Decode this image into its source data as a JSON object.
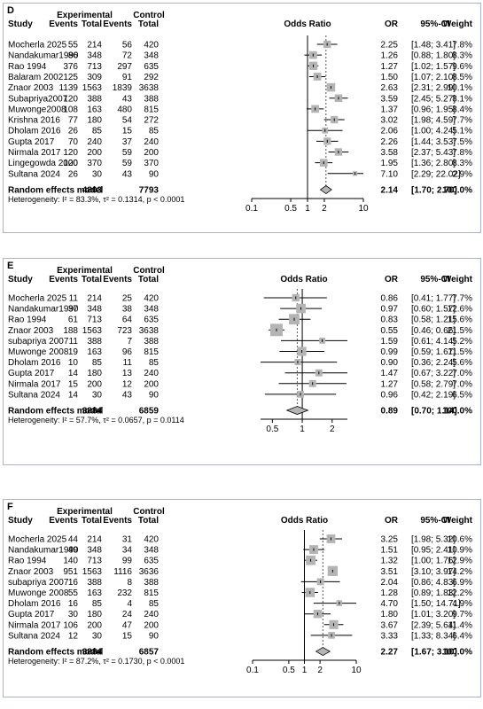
{
  "headers": {
    "study": "Study",
    "experimental": "Experimental",
    "control": "Control",
    "events": "Events",
    "total": "Total",
    "odds_ratio": "Odds Ratio",
    "or": "OR",
    "ci": "95%-CI",
    "weight": "Weight"
  },
  "colors": {
    "box": "#b4b4b4",
    "border": "#aab4c6",
    "line": "#000000"
  },
  "chart_data": [
    {
      "type": "forest",
      "panel_label": "D",
      "log_scale": true,
      "ticks": [
        "0.1",
        "0.5",
        "1",
        "2",
        "10"
      ],
      "tick_values": [
        0.1,
        0.5,
        1,
        2,
        10
      ],
      "xlim": [
        0.1,
        10
      ],
      "pooled_reference": 2.14,
      "studies": [
        {
          "study": "Mocherla 2025",
          "exp_events": "55",
          "exp_total": "214",
          "ctrl_events": "56",
          "ctrl_total": "420",
          "or": 2.25,
          "lo": 1.48,
          "hi": 3.41,
          "or_text": "2.25",
          "ci_text": "[1.48; 3.41]",
          "weight": "7.8%"
        },
        {
          "study": "Nandakumar1990",
          "exp_events": "86",
          "exp_total": "348",
          "ctrl_events": "72",
          "ctrl_total": "348",
          "or": 1.26,
          "lo": 0.88,
          "hi": 1.8,
          "or_text": "1.26",
          "ci_text": "[0.88; 1.80]",
          "weight": "8.3%"
        },
        {
          "study": "Rao 1994",
          "exp_events": "376",
          "exp_total": "713",
          "ctrl_events": "297",
          "ctrl_total": "635",
          "or": 1.27,
          "lo": 1.02,
          "hi": 1.57,
          "or_text": "1.27",
          "ci_text": "[1.02; 1.57]",
          "weight": "9.6%"
        },
        {
          "study": "Balaram 2002",
          "exp_events": "125",
          "exp_total": "309",
          "ctrl_events": "91",
          "ctrl_total": "292",
          "or": 1.5,
          "lo": 1.07,
          "hi": 2.1,
          "or_text": "1.50",
          "ci_text": "[1.07; 2.10]",
          "weight": "8.5%"
        },
        {
          "study": "Znaor 2003",
          "exp_events": "1139",
          "exp_total": "1563",
          "ctrl_events": "1839",
          "ctrl_total": "3638",
          "or": 2.63,
          "lo": 2.31,
          "hi": 2.99,
          "or_text": "2.63",
          "ci_text": "[2.31; 2.99]",
          "weight": "10.1%"
        },
        {
          "study": "Subapriya2007",
          "exp_events": "120",
          "exp_total": "388",
          "ctrl_events": "43",
          "ctrl_total": "388",
          "or": 3.59,
          "lo": 2.45,
          "hi": 5.27,
          "or_text": "3.59",
          "ci_text": "[2.45; 5.27]",
          "weight": "8.1%"
        },
        {
          "study": "Muwonge2008",
          "exp_events": "108",
          "exp_total": "163",
          "ctrl_events": "480",
          "ctrl_total": "815",
          "or": 1.37,
          "lo": 0.96,
          "hi": 1.95,
          "or_text": "1.37",
          "ci_text": "[0.96; 1.95]",
          "weight": "8.4%"
        },
        {
          "study": "Krishna 2016",
          "exp_events": "77",
          "exp_total": "180",
          "ctrl_events": "54",
          "ctrl_total": "272",
          "or": 3.02,
          "lo": 1.98,
          "hi": 4.59,
          "or_text": "3.02",
          "ci_text": "[1.98; 4.59]",
          "weight": "7.7%"
        },
        {
          "study": "Dholam 2016",
          "exp_events": "26",
          "exp_total": "85",
          "ctrl_events": "15",
          "ctrl_total": "85",
          "or": 2.06,
          "lo": 1.0,
          "hi": 4.24,
          "or_text": "2.06",
          "ci_text": "[1.00; 4.24]",
          "weight": "5.1%"
        },
        {
          "study": "Gupta 2017",
          "exp_events": "70",
          "exp_total": "240",
          "ctrl_events": "37",
          "ctrl_total": "240",
          "or": 2.26,
          "lo": 1.44,
          "hi": 3.53,
          "or_text": "2.26",
          "ci_text": "[1.44; 3.53]",
          "weight": "7.5%"
        },
        {
          "study": "Nirmala 2017",
          "exp_events": "120",
          "exp_total": "200",
          "ctrl_events": "59",
          "ctrl_total": "200",
          "or": 3.58,
          "lo": 2.37,
          "hi": 5.43,
          "or_text": "3.58",
          "ci_text": "[2.37; 5.43]",
          "weight": "7.8%"
        },
        {
          "study": "Lingegowda 2020",
          "exp_events": "100",
          "exp_total": "370",
          "ctrl_events": "59",
          "ctrl_total": "370",
          "or": 1.95,
          "lo": 1.36,
          "hi": 2.8,
          "or_text": "1.95",
          "ci_text": "[1.36; 2.80]",
          "weight": "8.3%"
        },
        {
          "study": "Sultana 2024",
          "exp_events": "26",
          "exp_total": "30",
          "ctrl_events": "43",
          "ctrl_total": "90",
          "or": 7.1,
          "lo": 2.29,
          "hi": 22.02,
          "or_text": "7.10",
          "ci_text": "[2.29; 22.02]",
          "weight": "2.9%"
        }
      ],
      "pooled": {
        "label": "Random effects model",
        "exp_total": "4803",
        "ctrl_total": "7793",
        "or": 2.14,
        "lo": 1.7,
        "hi": 2.7,
        "or_text": "2.14",
        "ci_text": "[1.70; 2.70]",
        "weight": "100.0%"
      },
      "heterogeneity": "Heterogeneity: I² = 83.3%, τ² = 0.1314, p < 0.0001"
    },
    {
      "type": "forest",
      "panel_label": "E",
      "log_scale": true,
      "ticks": [
        "0.5",
        "1",
        "2"
      ],
      "tick_values": [
        0.5,
        1,
        2
      ],
      "xlim": [
        0.38,
        2.85
      ],
      "pooled_reference": 0.89,
      "studies": [
        {
          "study": "Mocherla 2025",
          "exp_events": "11",
          "exp_total": "214",
          "ctrl_events": "25",
          "ctrl_total": "420",
          "or": 0.86,
          "lo": 0.41,
          "hi": 1.77,
          "or_text": "0.86",
          "ci_text": "[0.41; 1.77]",
          "weight": "7.7%"
        },
        {
          "study": "Nandakumar1990",
          "exp_events": "37",
          "exp_total": "348",
          "ctrl_events": "38",
          "ctrl_total": "348",
          "or": 0.97,
          "lo": 0.6,
          "hi": 1.57,
          "or_text": "0.97",
          "ci_text": "[0.60; 1.57]",
          "weight": "12.6%"
        },
        {
          "study": "Rao 1994",
          "exp_events": "61",
          "exp_total": "713",
          "ctrl_events": "64",
          "ctrl_total": "635",
          "or": 0.83,
          "lo": 0.58,
          "hi": 1.21,
          "or_text": "0.83",
          "ci_text": "[0.58; 1.21]",
          "weight": "15.6%"
        },
        {
          "study": "Znaor 2003",
          "exp_events": "188",
          "exp_total": "1563",
          "ctrl_events": "723",
          "ctrl_total": "3638",
          "or": 0.55,
          "lo": 0.46,
          "hi": 0.66,
          "or_text": "0.55",
          "ci_text": "[0.46; 0.66]",
          "weight": "21.5%"
        },
        {
          "study": "subapriya 2007",
          "exp_events": "11",
          "exp_total": "388",
          "ctrl_events": "7",
          "ctrl_total": "388",
          "or": 1.59,
          "lo": 0.61,
          "hi": 4.14,
          "or_text": "1.59",
          "ci_text": "[0.61; 4.14]",
          "weight": "5.2%"
        },
        {
          "study": "Muwonge 2008",
          "exp_events": "19",
          "exp_total": "163",
          "ctrl_events": "96",
          "ctrl_total": "815",
          "or": 0.99,
          "lo": 0.59,
          "hi": 1.67,
          "or_text": "0.99",
          "ci_text": "[0.59; 1.67]",
          "weight": "11.5%"
        },
        {
          "study": "Dholam 2016",
          "exp_events": "10",
          "exp_total": "85",
          "ctrl_events": "11",
          "ctrl_total": "85",
          "or": 0.9,
          "lo": 0.36,
          "hi": 2.24,
          "or_text": "0.90",
          "ci_text": "[0.36; 2.24]",
          "weight": "5.6%"
        },
        {
          "study": "Gupta 2017",
          "exp_events": "14",
          "exp_total": "180",
          "ctrl_events": "13",
          "ctrl_total": "240",
          "or": 1.47,
          "lo": 0.67,
          "hi": 3.22,
          "or_text": "1.47",
          "ci_text": "[0.67; 3.22]",
          "weight": "7.0%"
        },
        {
          "study": "Nirmala 2017",
          "exp_events": "15",
          "exp_total": "200",
          "ctrl_events": "12",
          "ctrl_total": "200",
          "or": 1.27,
          "lo": 0.58,
          "hi": 2.79,
          "or_text": "1.27",
          "ci_text": "[0.58; 2.79]",
          "weight": "7.0%"
        },
        {
          "study": "Sultana 2024",
          "exp_events": "14",
          "exp_total": "30",
          "ctrl_events": "43",
          "ctrl_total": "90",
          "or": 0.96,
          "lo": 0.42,
          "hi": 2.19,
          "or_text": "0.96",
          "ci_text": "[0.42; 2.19]",
          "weight": "6.5%"
        }
      ],
      "pooled": {
        "label": "Random effects model",
        "exp_total": "3884",
        "ctrl_total": "6859",
        "or": 0.89,
        "lo": 0.7,
        "hi": 1.14,
        "or_text": "0.89",
        "ci_text": "[0.70; 1.14]",
        "weight": "100.0%"
      },
      "heterogeneity": "Heterogeneity: I² = 57.7%, τ² = 0.0657, p = 0.0114"
    },
    {
      "type": "forest",
      "panel_label": "F",
      "log_scale": true,
      "ticks": [
        "0.1",
        "0.5",
        "1",
        "2",
        "10"
      ],
      "tick_values": [
        0.1,
        0.5,
        1,
        2,
        10
      ],
      "xlim": [
        0.1,
        10
      ],
      "pooled_reference": 2.27,
      "studies": [
        {
          "study": "Mocherla 2025",
          "exp_events": "44",
          "exp_total": "214",
          "ctrl_events": "31",
          "ctrl_total": "420",
          "or": 3.25,
          "lo": 1.98,
          "hi": 5.32,
          "or_text": "3.25",
          "ci_text": "[1.98; 5.32]",
          "weight": "10.6%"
        },
        {
          "study": "Nandakumar1990",
          "exp_events": "49",
          "exp_total": "348",
          "ctrl_events": "34",
          "ctrl_total": "348",
          "or": 1.51,
          "lo": 0.95,
          "hi": 2.41,
          "or_text": "1.51",
          "ci_text": "[0.95; 2.41]",
          "weight": "10.9%"
        },
        {
          "study": "Rao 1994",
          "exp_events": "140",
          "exp_total": "713",
          "ctrl_events": "99",
          "ctrl_total": "635",
          "or": 1.32,
          "lo": 1.0,
          "hi": 1.76,
          "or_text": "1.32",
          "ci_text": "[1.00; 1.76]",
          "weight": "12.9%"
        },
        {
          "study": "Znaor 2003",
          "exp_events": "951",
          "exp_total": "1563",
          "ctrl_events": "1116",
          "ctrl_total": "3636",
          "or": 3.51,
          "lo": 3.1,
          "hi": 3.97,
          "or_text": "3.51",
          "ci_text": "[3.10; 3.97]",
          "weight": "14.2%"
        },
        {
          "study": "subapriya 2007",
          "exp_events": "16",
          "exp_total": "388",
          "ctrl_events": "8",
          "ctrl_total": "388",
          "or": 2.04,
          "lo": 0.86,
          "hi": 4.83,
          "or_text": "2.04",
          "ci_text": "[0.86; 4.83]",
          "weight": "6.9%"
        },
        {
          "study": "Muwonge 2008",
          "exp_events": "55",
          "exp_total": "163",
          "ctrl_events": "232",
          "ctrl_total": "815",
          "or": 1.28,
          "lo": 0.89,
          "hi": 1.83,
          "or_text": "1.28",
          "ci_text": "[0.89; 1.83]",
          "weight": "12.2%"
        },
        {
          "study": "Dholam 2016",
          "exp_events": "16",
          "exp_total": "85",
          "ctrl_events": "4",
          "ctrl_total": "85",
          "or": 4.7,
          "lo": 1.5,
          "hi": 14.71,
          "or_text": "4.70",
          "ci_text": "[1.50; 14.71]",
          "weight": "4.9%"
        },
        {
          "study": "Gupta 2017",
          "exp_events": "30",
          "exp_total": "180",
          "ctrl_events": "24",
          "ctrl_total": "240",
          "or": 1.8,
          "lo": 1.01,
          "hi": 3.2,
          "or_text": "1.80",
          "ci_text": "[1.01; 3.20]",
          "weight": "9.7%"
        },
        {
          "study": "Nirmala 2017",
          "exp_events": "106",
          "exp_total": "200",
          "ctrl_events": "47",
          "ctrl_total": "200",
          "or": 3.67,
          "lo": 2.39,
          "hi": 5.64,
          "or_text": "3.67",
          "ci_text": "[2.39; 5.64]",
          "weight": "11.4%"
        },
        {
          "study": "Sultana 2024",
          "exp_events": "12",
          "exp_total": "30",
          "ctrl_events": "15",
          "ctrl_total": "90",
          "or": 3.33,
          "lo": 1.33,
          "hi": 8.34,
          "or_text": "3.33",
          "ci_text": "[1.33; 8.34]",
          "weight": "6.4%"
        }
      ],
      "pooled": {
        "label": "Random effects model",
        "exp_total": "3884",
        "ctrl_total": "6857",
        "or": 2.27,
        "lo": 1.67,
        "hi": 3.1,
        "or_text": "2.27",
        "ci_text": "[1.67; 3.10]",
        "weight": "100.0%"
      },
      "heterogeneity": "Heterogeneity: I² = 87.2%, τ² = 0.1730, p < 0.0001"
    }
  ]
}
